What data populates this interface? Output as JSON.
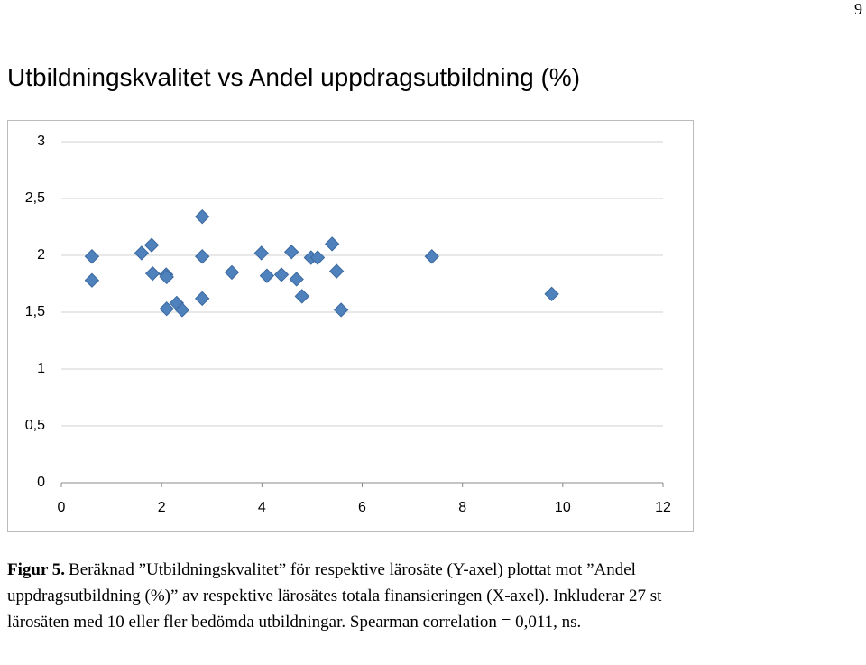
{
  "page_number": "9",
  "caption": {
    "label": "Figur 5.",
    "text": "Beräknad ”Utbildningskvalitet” för respektive lärosäte (Y-axel) plottat mot ”Andel uppdragsutbildning (%)” av respektive lärosätes totala finansieringen (X-axel). Inkluderar 27 st lärosäten med 10 eller fler bedömda utbildningar. Spearman correlation = 0,011, ns."
  },
  "chart_data": {
    "type": "scatter",
    "title": "Utbildningskvalitet vs Andel uppdragsutbildning (%)",
    "x": [
      0.61,
      0.61,
      1.6,
      1.8,
      1.82,
      2.09,
      2.1,
      2.1,
      2.3,
      2.41,
      2.81,
      2.81,
      2.81,
      3.4,
      3.99,
      4.1,
      4.39,
      4.59,
      4.69,
      4.8,
      4.98,
      5.11,
      5.4,
      5.49,
      5.58,
      7.39,
      9.78
    ],
    "values": [
      1.99,
      1.78,
      2.02,
      2.09,
      1.84,
      1.83,
      1.81,
      1.53,
      1.58,
      1.52,
      2.34,
      1.99,
      1.62,
      1.85,
      2.02,
      1.82,
      1.83,
      2.03,
      1.79,
      1.64,
      1.98,
      1.98,
      2.1,
      1.86,
      1.52,
      1.99,
      1.66
    ],
    "color": "#4f81bd",
    "xlim": [
      0,
      12
    ],
    "xticks": [
      0,
      2,
      4,
      6,
      8,
      10,
      12
    ],
    "ylim": [
      0,
      3
    ],
    "yticks": [
      0,
      {
        "value": 0.5,
        "label": "0,5"
      },
      1,
      {
        "value": 1.5,
        "label": "1,5"
      },
      2,
      {
        "value": 2.5,
        "label": "2,5"
      },
      3
    ],
    "grid": true
  }
}
